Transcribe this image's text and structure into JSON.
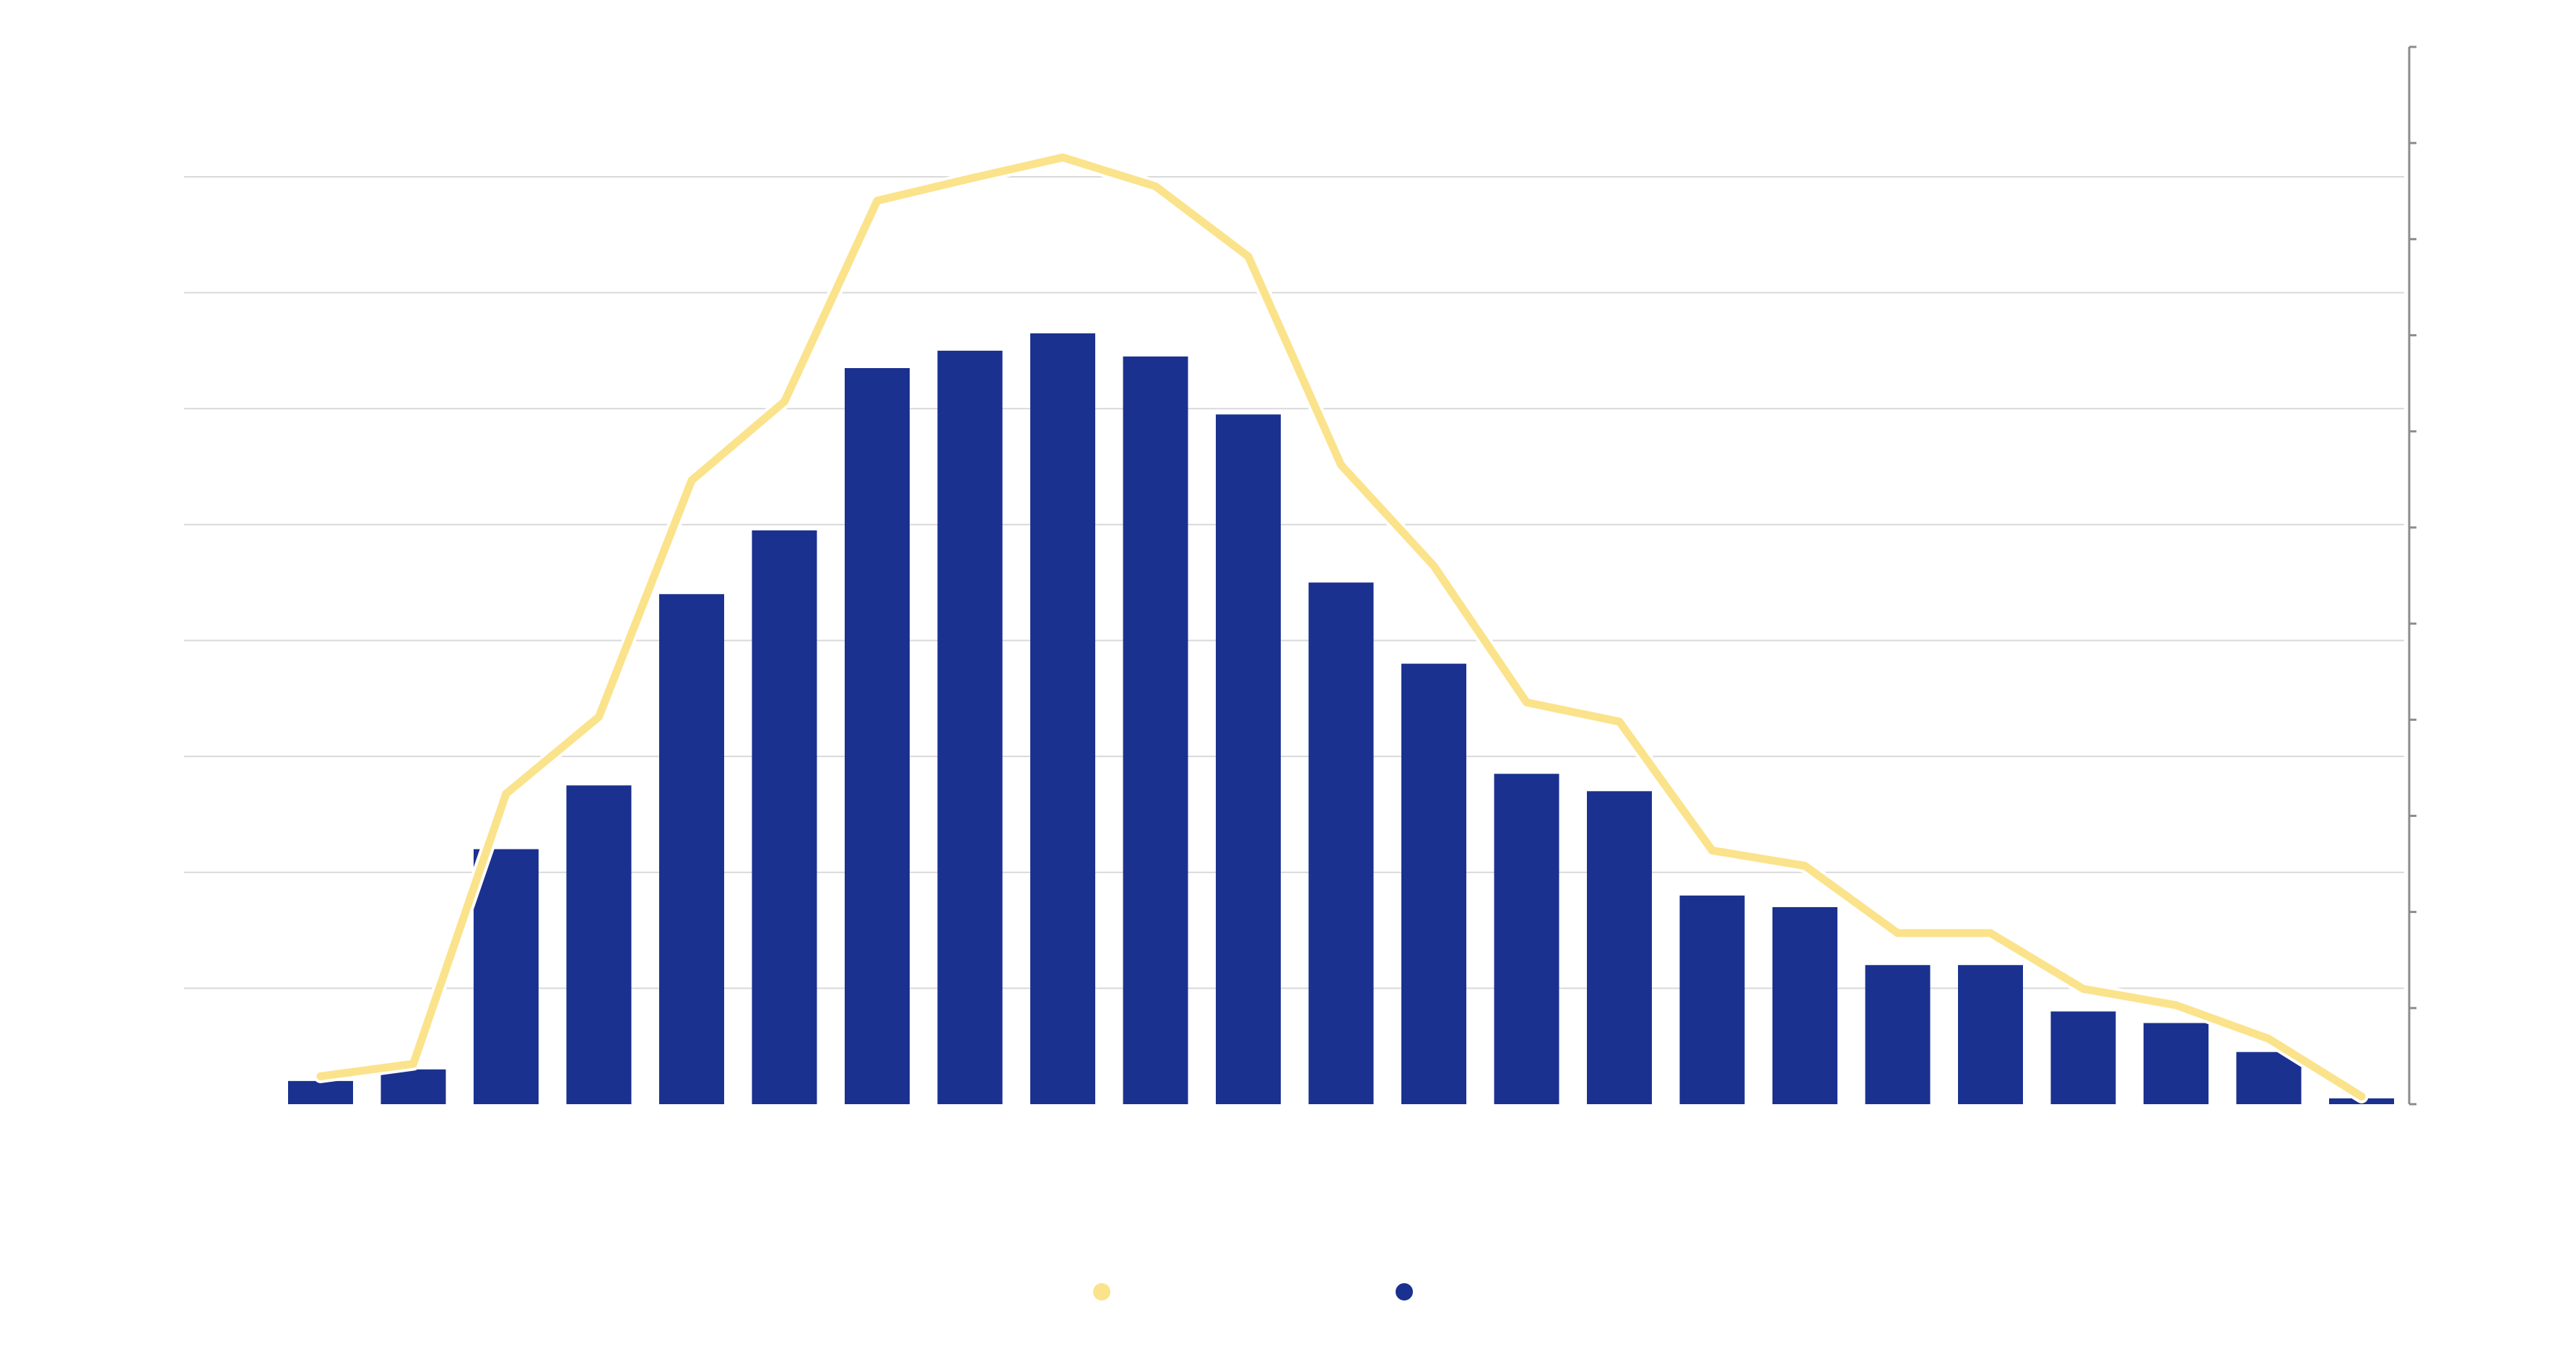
{
  "chart_data": {
    "type": "bar",
    "categories": [
      "",
      "",
      "",
      "",
      "",
      "",
      "",
      "",
      "",
      "",
      "",
      "",
      "",
      "",
      "",
      "",
      "",
      "",
      "",
      "",
      "",
      "",
      ""
    ],
    "series": [
      {
        "type": "bar",
        "color": "#1b3190",
        "axis": "left",
        "values": [
          20,
          30,
          220,
          275,
          440,
          495,
          635,
          650,
          665,
          645,
          595,
          450,
          380,
          285,
          270,
          180,
          170,
          120,
          120,
          80,
          70,
          45,
          5
        ]
      },
      {
        "type": "line",
        "color": "#fbe38c",
        "axis": "right",
        "values": [
          29,
          42,
          323,
          403,
          649,
          731,
          940,
          963,
          985,
          955,
          882,
          665,
          560,
          418,
          398,
          264,
          248,
          178,
          178,
          120,
          103,
          68,
          8
        ]
      }
    ],
    "y_left": {
      "min": 0,
      "max": 800,
      "gridline_step": 100,
      "tick_labels": false
    },
    "y_right": {
      "min": 0,
      "max": 1100,
      "tick_step": 100,
      "tick_labels": false
    },
    "grid": true,
    "legend": {
      "placement": "bottom-center",
      "entries": [
        "",
        ""
      ]
    },
    "title": "",
    "xlabel": "",
    "ylabel": ""
  }
}
